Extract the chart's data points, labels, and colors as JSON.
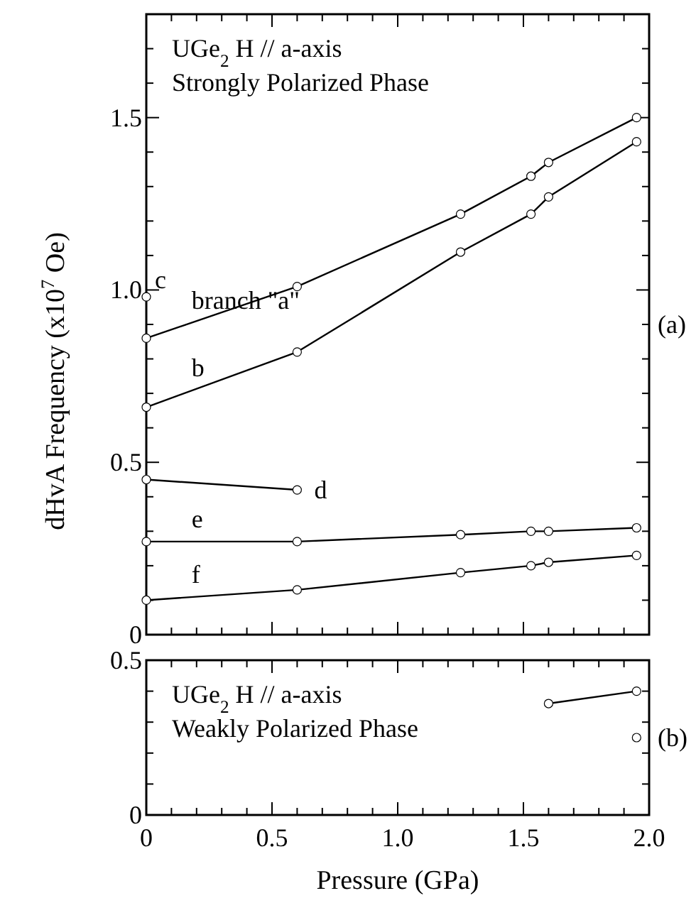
{
  "chart_data": [
    {
      "type": "line",
      "ylabel": "dHvA Frequency (x10$^{7}$ Oe)",
      "annotations": [
        "UGe$_{2}$    H // a-axis",
        "Strongly Polarized Phase",
        "(a)"
      ],
      "xlim": [
        0,
        2.0
      ],
      "xticks": [
        {
          "value": 0,
          "label": null
        },
        {
          "value": 0.1,
          "label": null
        },
        {
          "value": 0.2,
          "label": null
        },
        {
          "value": 0.3,
          "label": null
        },
        {
          "value": 0.4,
          "label": null
        },
        {
          "value": 0.5,
          "label": null
        },
        {
          "value": 0.6,
          "label": null
        },
        {
          "value": 0.7,
          "label": null
        },
        {
          "value": 0.8,
          "label": null
        },
        {
          "value": 0.9,
          "label": null
        },
        {
          "value": 1.0,
          "label": null
        },
        {
          "value": 1.1,
          "label": null
        },
        {
          "value": 1.2,
          "label": null
        },
        {
          "value": 1.3,
          "label": null
        },
        {
          "value": 1.4,
          "label": null
        },
        {
          "value": 1.5,
          "label": null
        },
        {
          "value": 1.6,
          "label": null
        },
        {
          "value": 1.7,
          "label": null
        },
        {
          "value": 1.8,
          "label": null
        },
        {
          "value": 1.9,
          "label": null
        },
        {
          "value": 2.0,
          "label": null
        }
      ],
      "ylim": [
        0,
        1.8
      ],
      "yticks": [
        0,
        {
          "value": 0.1,
          "label": null
        },
        {
          "value": 0.2,
          "label": null
        },
        {
          "value": 0.3,
          "label": null
        },
        {
          "value": 0.4,
          "label": null
        },
        0.5,
        {
          "value": 0.6,
          "label": null
        },
        {
          "value": 0.7,
          "label": null
        },
        {
          "value": 0.8,
          "label": null
        },
        {
          "value": 0.9,
          "label": null
        },
        {
          "value": 1.0,
          "label": "1.0"
        },
        {
          "value": 1.1,
          "label": null
        },
        {
          "value": 1.2,
          "label": null
        },
        {
          "value": 1.3,
          "label": null
        },
        {
          "value": 1.4,
          "label": null
        },
        1.5,
        {
          "value": 1.6,
          "label": null
        },
        {
          "value": 1.7,
          "label": null
        }
      ],
      "tick_labels": "y",
      "marker": "circle",
      "line_style": "solid",
      "grid": false,
      "series": [
        {
          "name": "branch \"a\"",
          "color": "#000000",
          "x": [
            0,
            0.6,
            1.25,
            1.53,
            1.6,
            1.95
          ],
          "values": [
            0.86,
            1.01,
            1.22,
            1.33,
            1.37,
            1.5
          ]
        },
        {
          "name": "b",
          "color": "#000000",
          "x": [
            0,
            0.6,
            1.25,
            1.53,
            1.6,
            1.95
          ],
          "values": [
            0.66,
            0.82,
            1.11,
            1.22,
            1.27,
            1.43
          ]
        },
        {
          "name": "c",
          "type": "scatter",
          "color": "#000000",
          "x": [
            0
          ],
          "values": [
            0.98
          ]
        },
        {
          "name": "d",
          "color": "#000000",
          "x": [
            0,
            0.6
          ],
          "values": [
            0.45,
            0.42
          ]
        },
        {
          "name": "e",
          "color": "#000000",
          "x": [
            0,
            0.6,
            1.25,
            1.53,
            1.6,
            1.95
          ],
          "values": [
            0.27,
            0.27,
            0.29,
            0.3,
            0.3,
            0.31
          ]
        },
        {
          "name": "f",
          "color": "#000000",
          "x": [
            0,
            0.6,
            1.25,
            1.53,
            1.6,
            1.95
          ],
          "values": [
            0.1,
            0.13,
            0.18,
            0.2,
            0.21,
            0.23
          ]
        }
      ]
    },
    {
      "type": "line",
      "xlabel": "Pressure (GPa)",
      "annotations": [
        "UGe$_{2}$  H // a-axis",
        "Weakly Polarized Phase",
        "(b)"
      ],
      "xlim": [
        0,
        2.0
      ],
      "xticks": [
        0,
        {
          "value": 0.1,
          "label": null
        },
        {
          "value": 0.2,
          "label": null
        },
        {
          "value": 0.3,
          "label": null
        },
        {
          "value": 0.4,
          "label": null
        },
        {
          "value": 0.5,
          "label": "0.5"
        },
        {
          "value": 0.6,
          "label": null
        },
        {
          "value": 0.7,
          "label": null
        },
        {
          "value": 0.8,
          "label": null
        },
        {
          "value": 0.9,
          "label": null
        },
        {
          "value": 1.0,
          "label": "1.0"
        },
        {
          "value": 1.1,
          "label": null
        },
        {
          "value": 1.2,
          "label": null
        },
        {
          "value": 1.3,
          "label": null
        },
        {
          "value": 1.4,
          "label": null
        },
        {
          "value": 1.5,
          "label": "1.5"
        },
        {
          "value": 1.6,
          "label": null
        },
        {
          "value": 1.7,
          "label": null
        },
        {
          "value": 1.8,
          "label": null
        },
        {
          "value": 1.9,
          "label": null
        },
        {
          "value": 2.0,
          "label": "2.0"
        }
      ],
      "ylim": [
        0,
        0.5
      ],
      "yticks": [
        0,
        {
          "value": 0.1,
          "label": null
        },
        {
          "value": 0.2,
          "label": null
        },
        {
          "value": 0.3,
          "label": null
        },
        {
          "value": 0.4,
          "label": null
        },
        0.5
      ],
      "marker": "circle",
      "line_style": "solid",
      "grid": false,
      "series": [
        {
          "color": "#000000",
          "x": [
            1.6,
            1.95
          ],
          "values": [
            0.36,
            0.4
          ]
        },
        {
          "type": "scatter",
          "color": "#000000",
          "x": [
            1.95
          ],
          "values": [
            0.25
          ]
        }
      ]
    }
  ]
}
